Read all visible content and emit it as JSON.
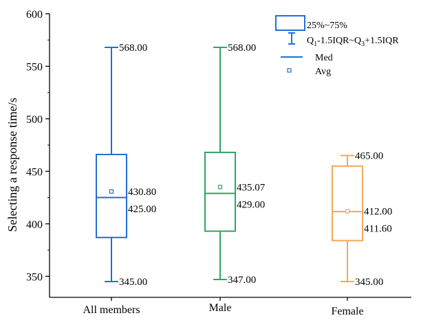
{
  "chart_data": {
    "type": "box",
    "ylabel": "Selecting a  response time/s",
    "xlabel": "",
    "ylim": [
      330,
      600
    ],
    "yticks": [
      350,
      400,
      450,
      500,
      550,
      600
    ],
    "grid": false,
    "legend_position": "top-right",
    "legend": {
      "box_label": "25%~75%",
      "whisker_label_parts": [
        "Q",
        "1",
        "-1.5IQR~Q",
        "3",
        "+1.5IQR"
      ],
      "median_label": "Med",
      "mean_label": "Avg"
    },
    "categories": [
      "All members",
      "Male",
      "Female"
    ],
    "series": [
      {
        "category": "All members",
        "color": "#1f6fd6",
        "min": 345.0,
        "q1": 387,
        "median": 425.0,
        "q3": 466,
        "max": 568.0,
        "mean": 430.8,
        "labels": {
          "max": "568.00",
          "min": "345.00",
          "mean": "430.80",
          "median": "425.00"
        }
      },
      {
        "category": "Male",
        "color": "#2ea55f",
        "min": 347.0,
        "q1": 393,
        "median": 429.0,
        "q3": 468,
        "max": 568.0,
        "mean": 435.07,
        "labels": {
          "max": "568.00",
          "min": "347.00",
          "mean": "435.07",
          "median": "429.00"
        }
      },
      {
        "category": "Female",
        "color": "#f5a65b",
        "min": 345.0,
        "q1": 384,
        "median": 411.6,
        "q3": 455,
        "max": 465.0,
        "mean": 412.0,
        "labels": {
          "max": "465.00",
          "min": "345.00",
          "mean": "412.00",
          "median": "411.60"
        }
      }
    ]
  }
}
